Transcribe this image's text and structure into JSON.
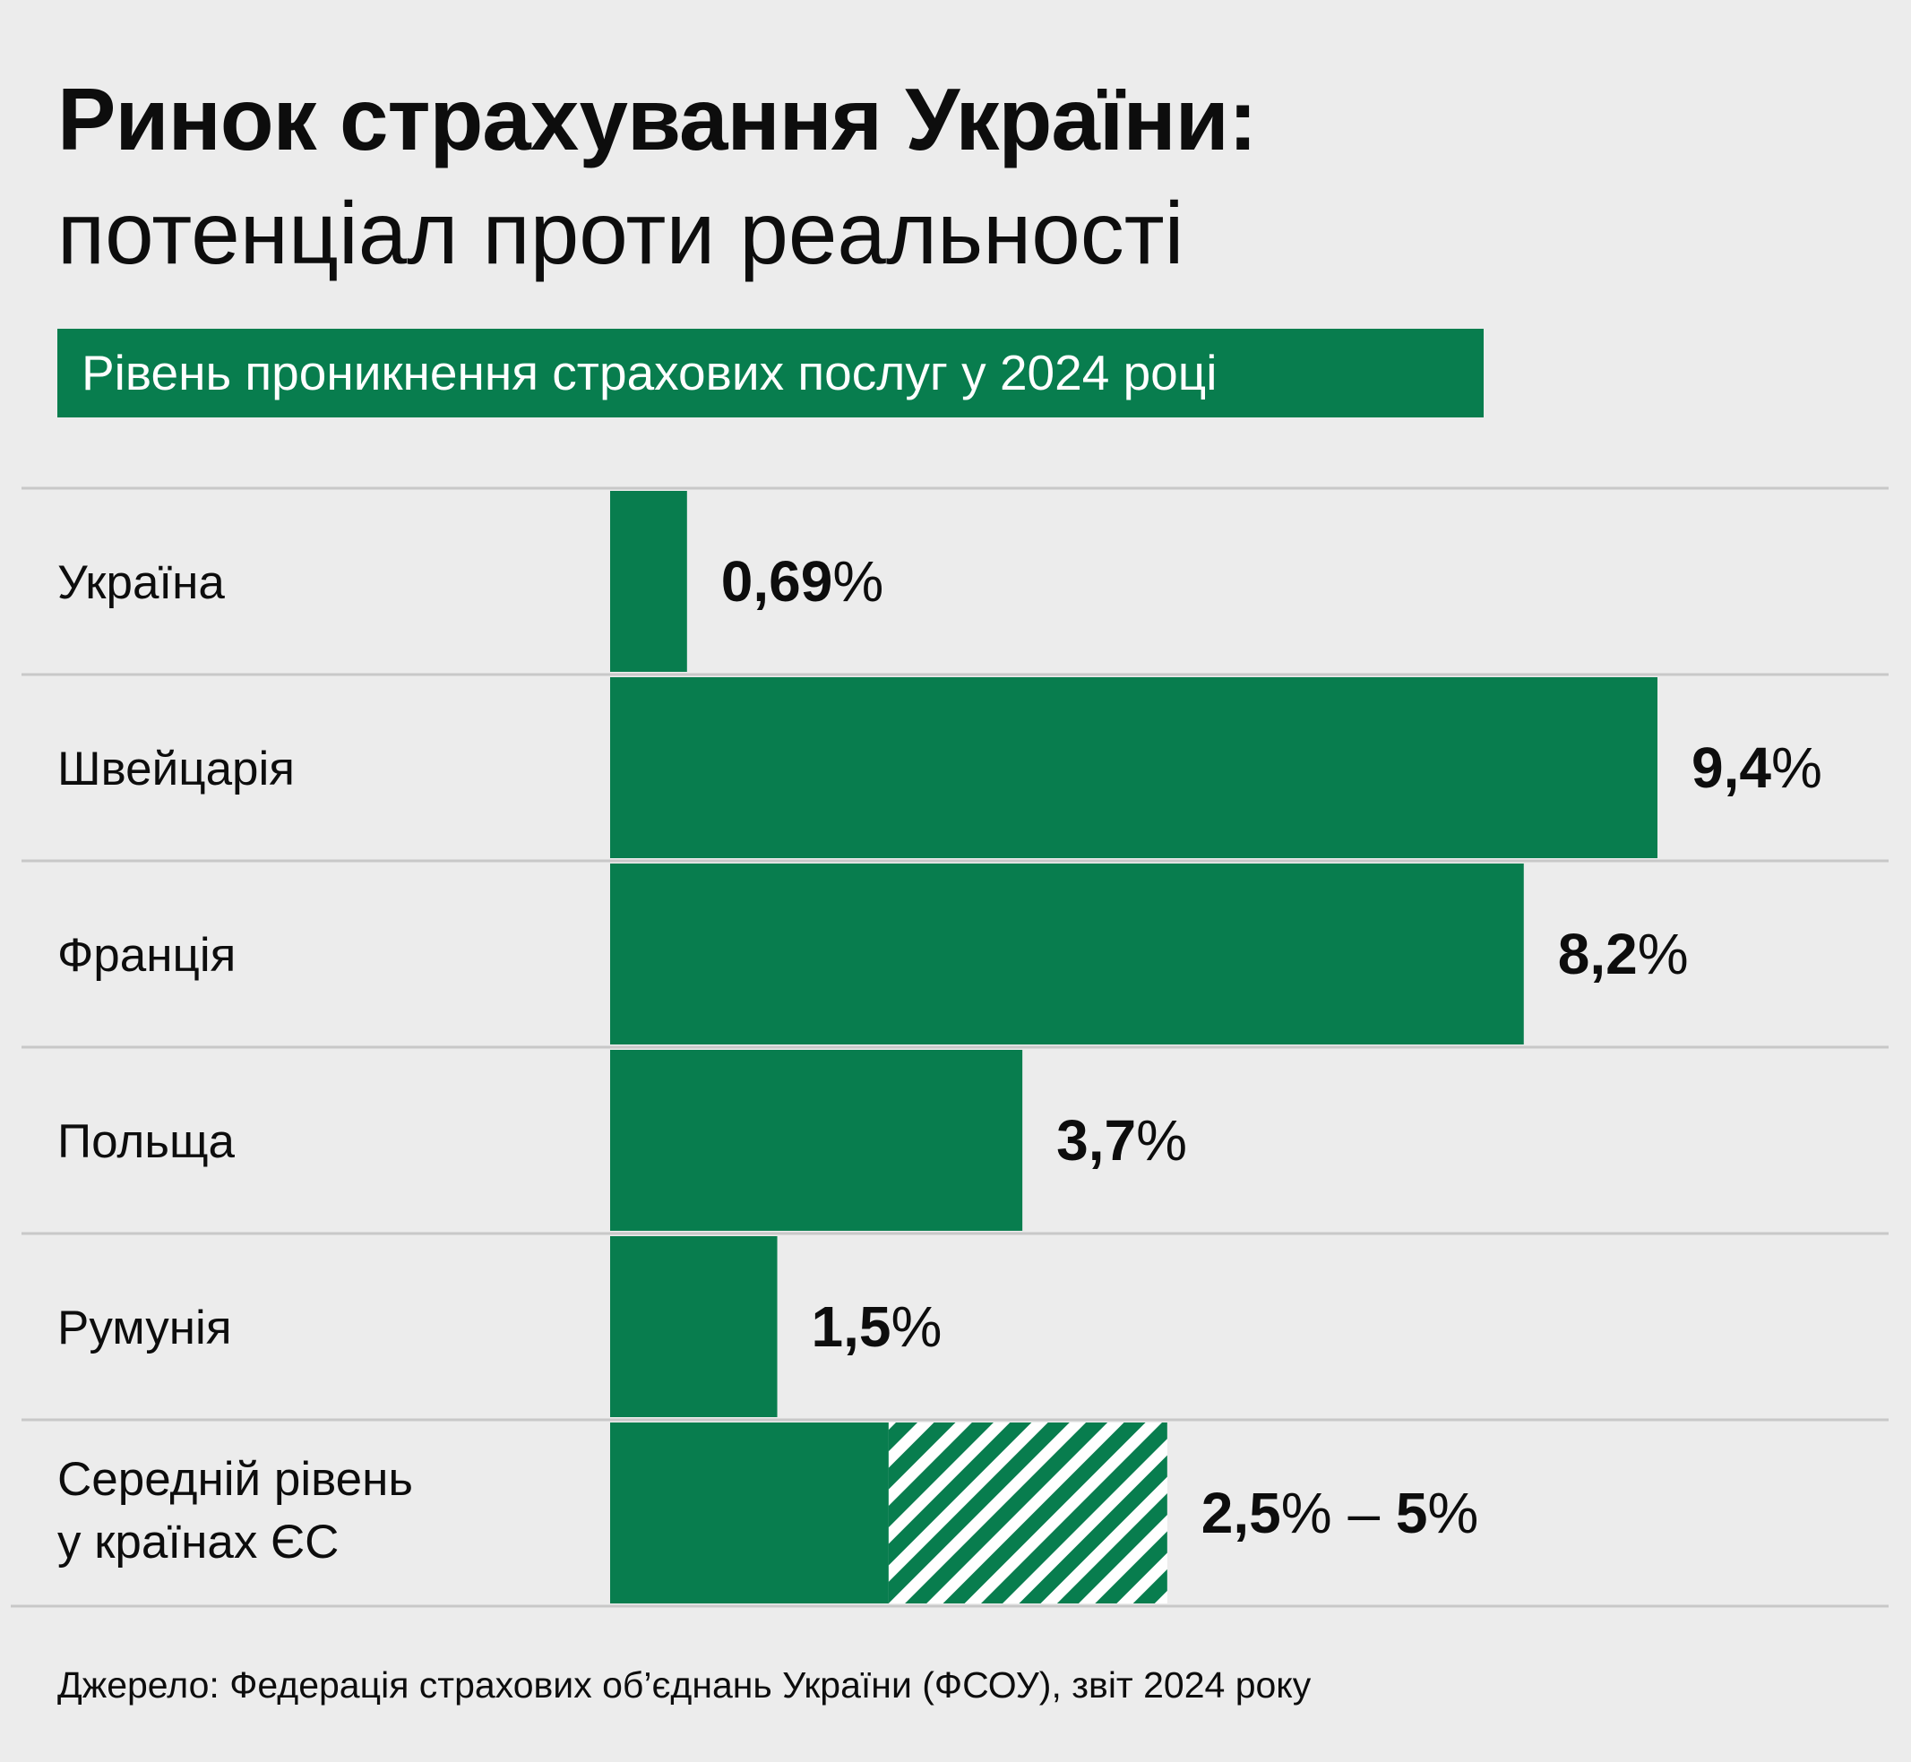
{
  "header": {
    "title_bold": "Ринок страхування України:",
    "title_regular": "потенціал проти реальності",
    "subtitle": "Рівень проникнення страхових послуг у 2024 році"
  },
  "colors": {
    "bar": "#087d4e",
    "background": "#ececec",
    "divider": "#c8c8c8",
    "text": "#0d0d0d"
  },
  "chart_data": {
    "type": "bar",
    "orientation": "horizontal",
    "unit": "%",
    "grid": false,
    "categories": [
      [
        "Україна"
      ],
      [
        "Швейцарія"
      ],
      [
        "Франція"
      ],
      [
        "Польща"
      ],
      [
        "Румунія"
      ],
      [
        "Середній рівень",
        "у країнах ЄС"
      ]
    ],
    "values": [
      0.69,
      9.4,
      8.2,
      3.7,
      1.5,
      2.5
    ],
    "range_upper": [
      null,
      null,
      null,
      null,
      null,
      5
    ],
    "value_labels": [
      {
        "num": "0,69",
        "pct": "%"
      },
      {
        "num": "9,4",
        "pct": "%"
      },
      {
        "num": "8,2",
        "pct": "%"
      },
      {
        "num": "3,7",
        "pct": "%"
      },
      {
        "num": "1,5",
        "pct": "%"
      },
      {
        "num": "2,5",
        "pct": "% – ",
        "num2": "5",
        "pct2": "%"
      }
    ],
    "xlim": [
      0,
      9.4
    ]
  },
  "source": "Джерело: Федерація страхових об’єднань України (ФСОУ), звіт 2024 року"
}
